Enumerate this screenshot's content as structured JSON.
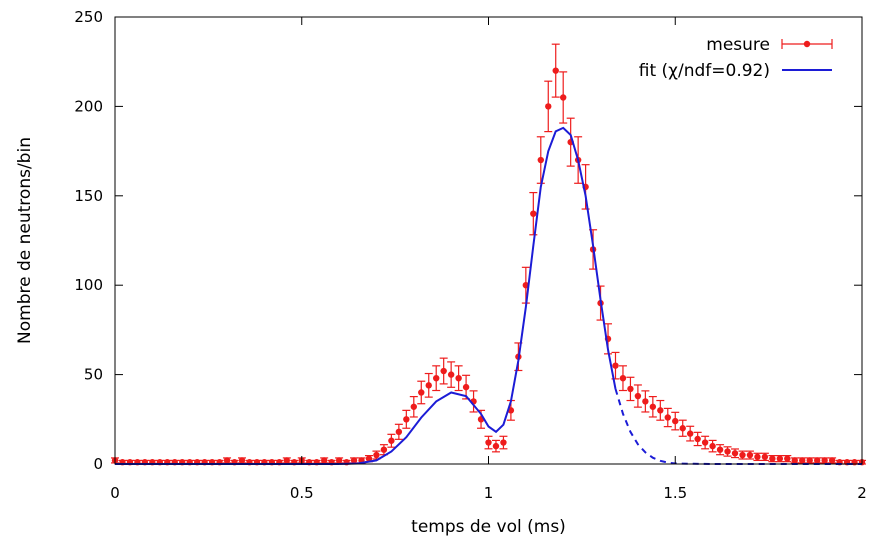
{
  "chart_data": {
    "type": "scatter",
    "title": "",
    "xlabel": "temps de vol (ms)",
    "ylabel": "Nombre de neutrons/bin",
    "xlim": [
      0,
      2
    ],
    "ylim": [
      0,
      250
    ],
    "x_ticks": [
      0,
      0.5,
      1,
      1.5,
      2
    ],
    "x_tick_labels": [
      "0",
      "0.5",
      "1",
      "1.5",
      "2"
    ],
    "y_ticks": [
      0,
      50,
      100,
      150,
      200,
      250
    ],
    "y_tick_labels": [
      "0",
      "50",
      "100",
      "150",
      "200",
      "250"
    ],
    "grid": false,
    "legend_position": "top-right",
    "series": [
      {
        "name": "mesure",
        "style": "points-with-errorbars",
        "color": "#ee1c1c",
        "x": [
          0.0,
          0.02,
          0.04,
          0.06,
          0.08,
          0.1,
          0.12,
          0.14,
          0.16,
          0.18,
          0.2,
          0.22,
          0.24,
          0.26,
          0.28,
          0.3,
          0.32,
          0.34,
          0.36,
          0.38,
          0.4,
          0.42,
          0.44,
          0.46,
          0.48,
          0.5,
          0.52,
          0.54,
          0.56,
          0.58,
          0.6,
          0.62,
          0.64,
          0.66,
          0.68,
          0.7,
          0.72,
          0.74,
          0.76,
          0.78,
          0.8,
          0.82,
          0.84,
          0.86,
          0.88,
          0.9,
          0.92,
          0.94,
          0.96,
          0.98,
          1.0,
          1.02,
          1.04,
          1.06,
          1.08,
          1.1,
          1.12,
          1.14,
          1.16,
          1.18,
          1.2,
          1.22,
          1.24,
          1.26,
          1.28,
          1.3,
          1.32,
          1.34,
          1.36,
          1.38,
          1.4,
          1.42,
          1.44,
          1.46,
          1.48,
          1.5,
          1.52,
          1.54,
          1.56,
          1.58,
          1.6,
          1.62,
          1.64,
          1.66,
          1.68,
          1.7,
          1.72,
          1.74,
          1.76,
          1.78,
          1.8,
          1.82,
          1.84,
          1.86,
          1.88,
          1.9,
          1.92,
          1.94,
          1.96,
          1.98,
          2.0
        ],
        "y": [
          2,
          1,
          1,
          1,
          1,
          1,
          1,
          1,
          1,
          1,
          1,
          1,
          1,
          1,
          1,
          2,
          1,
          2,
          1,
          1,
          1,
          1,
          1,
          2,
          1,
          2,
          1,
          1,
          2,
          1,
          2,
          1,
          2,
          2,
          3,
          5,
          8,
          13,
          18,
          25,
          32,
          40,
          44,
          48,
          52,
          50,
          48,
          43,
          35,
          25,
          12,
          10,
          12,
          30,
          60,
          100,
          140,
          170,
          200,
          220,
          205,
          180,
          170,
          155,
          120,
          90,
          70,
          55,
          48,
          42,
          38,
          35,
          32,
          30,
          26,
          24,
          20,
          17,
          14,
          12,
          10,
          8,
          7,
          6,
          5,
          5,
          4,
          4,
          3,
          3,
          3,
          2,
          2,
          2,
          2,
          2,
          2,
          1,
          1,
          1,
          1
        ],
        "err": [
          1.4,
          1,
          1,
          1,
          1,
          1,
          1,
          1,
          1,
          1,
          1,
          1,
          1,
          1,
          1,
          1.4,
          1,
          1.4,
          1,
          1,
          1,
          1,
          1,
          1.4,
          1,
          1.4,
          1,
          1,
          1.4,
          1,
          1.4,
          1,
          1.4,
          1.4,
          1.7,
          2.2,
          2.8,
          3.6,
          4.2,
          5,
          5.7,
          6.3,
          6.6,
          6.9,
          7.2,
          7.1,
          6.9,
          6.6,
          5.9,
          5,
          3.5,
          3.2,
          3.5,
          5.5,
          7.7,
          10,
          11.8,
          13,
          14.1,
          14.8,
          14.3,
          13.4,
          13,
          12.4,
          11,
          9.5,
          8.4,
          7.4,
          6.9,
          6.5,
          6.2,
          5.9,
          5.7,
          5.5,
          5.1,
          4.9,
          4.5,
          4.1,
          3.7,
          3.5,
          3.2,
          2.8,
          2.6,
          2.4,
          2.2,
          2.2,
          2,
          2,
          1.7,
          1.7,
          1.7,
          1.4,
          1.4,
          1.4,
          1.4,
          1.4,
          1.4,
          1,
          1,
          1,
          1
        ]
      },
      {
        "name": "fit (χ/ndf=0.92)",
        "style": "line",
        "color": "#1c1cd6",
        "x": [
          0.6,
          0.65,
          0.7,
          0.74,
          0.78,
          0.82,
          0.86,
          0.9,
          0.94,
          0.98,
          1.0,
          1.02,
          1.04,
          1.06,
          1.08,
          1.1,
          1.12,
          1.14,
          1.16,
          1.18,
          1.2,
          1.22,
          1.24,
          1.26,
          1.28,
          1.3,
          1.32,
          1.34
        ],
        "y": [
          0,
          0.3,
          2,
          7,
          15,
          26,
          35,
          40,
          38,
          28,
          21,
          18,
          22,
          35,
          58,
          88,
          122,
          155,
          175,
          186,
          188,
          184,
          170,
          150,
          122,
          92,
          64,
          42
        ]
      },
      {
        "name": "",
        "style": "dashed-line",
        "color": "#1c1cd6",
        "x": [
          1.34,
          1.36,
          1.38,
          1.4,
          1.42,
          1.44,
          1.46,
          1.48,
          1.5,
          1.55,
          1.6,
          1.7,
          1.8,
          1.9,
          2.0
        ],
        "y": [
          42,
          28,
          18,
          11,
          6.5,
          3.5,
          1.8,
          0.8,
          0.3,
          0.1,
          0,
          0,
          0,
          0,
          0
        ]
      }
    ]
  }
}
